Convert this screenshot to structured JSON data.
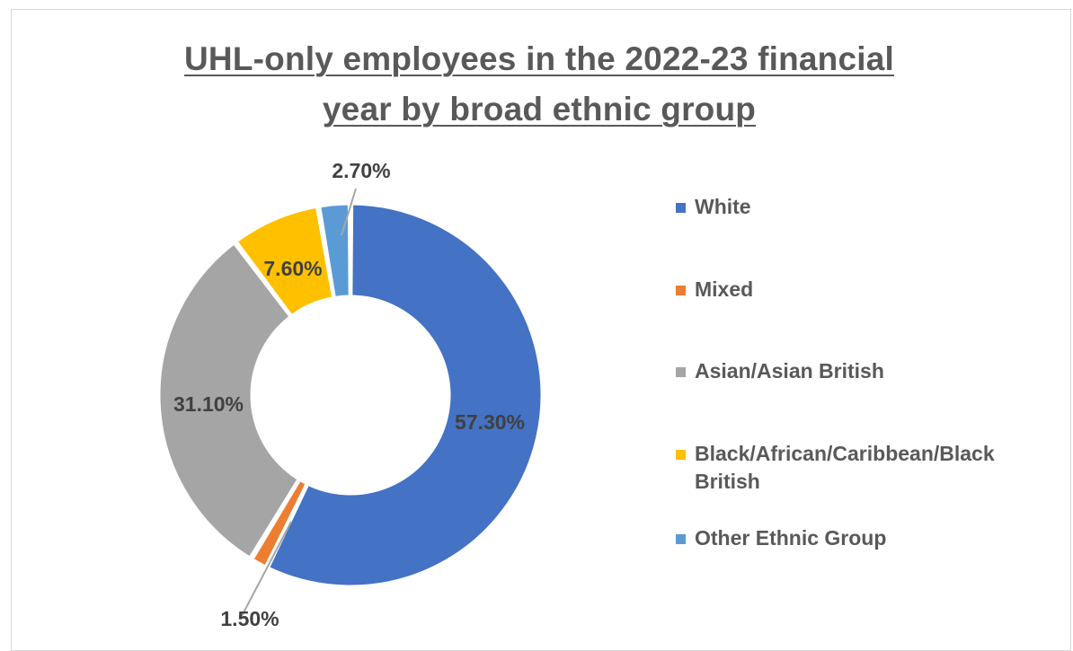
{
  "chart_data": {
    "type": "pie",
    "variant": "doughnut",
    "title": "UHL-only employees in the 2022-23 financial year by broad ethnic group",
    "title_lines": [
      "UHL-only employees in the 2022-23 financial",
      "year by broad ethnic group"
    ],
    "legend_position": "right",
    "categories": [
      "White",
      "Mixed",
      "Asian/Asian British",
      "Black/African/Caribbean/Black British",
      "Other Ethnic Group"
    ],
    "legend_lines": [
      [
        "White"
      ],
      [
        "Mixed"
      ],
      [
        "Asian/Asian British"
      ],
      [
        "Black/African/Caribbean/Black",
        "British"
      ],
      [
        "Other Ethnic Group"
      ]
    ],
    "values": [
      57.3,
      1.5,
      31.1,
      7.6,
      2.7
    ],
    "data_labels": [
      "57.30%",
      "1.50%",
      "31.10%",
      "7.60%",
      "2.70%"
    ],
    "colors": [
      "#4472c4",
      "#ed7d31",
      "#a5a5a5",
      "#ffc000",
      "#5b9bd5"
    ]
  }
}
